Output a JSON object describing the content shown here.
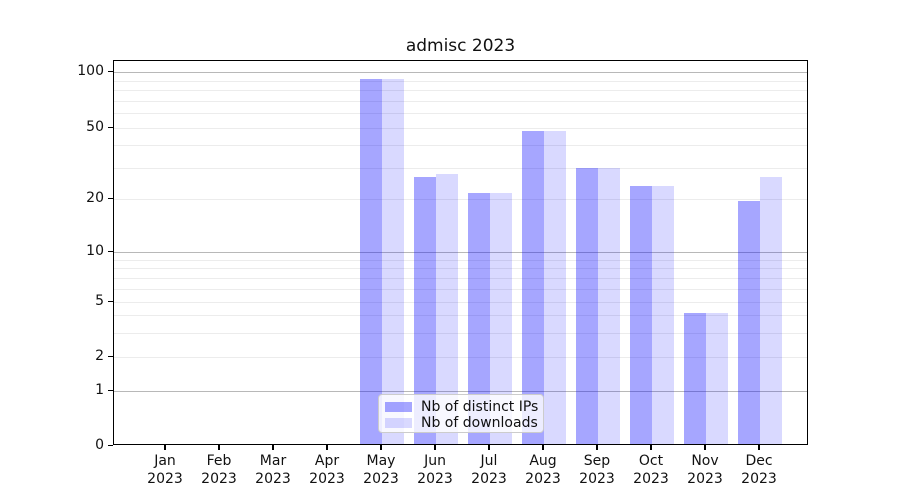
{
  "chart_data": {
    "type": "bar",
    "title": "admisc 2023",
    "categories": [
      "Jan 2023",
      "Feb 2023",
      "Mar 2023",
      "Apr 2023",
      "May 2023",
      "Jun 2023",
      "Jul 2023",
      "Aug 2023",
      "Sep 2023",
      "Oct 2023",
      "Nov 2023",
      "Dec 2023"
    ],
    "series": [
      {
        "name": "Nb of distinct IPs",
        "color": "rgba(0,0,255,0.35)",
        "color_hex": "#a6a6ff",
        "values": [
          0,
          0,
          0,
          0,
          90,
          26,
          21,
          47,
          29,
          23,
          4,
          19
        ]
      },
      {
        "name": "Nb of downloads",
        "color": "rgba(0,0,255,0.15)",
        "color_hex": "#d9d9ff",
        "values": [
          0,
          0,
          0,
          0,
          90,
          27,
          21,
          47,
          29,
          23,
          4,
          26
        ]
      }
    ],
    "xlabel": "",
    "ylabel": "",
    "scale": "symlog-like",
    "ylim": [
      0,
      110
    ],
    "yticks": [
      0,
      1,
      2,
      5,
      10,
      20,
      50,
      100
    ],
    "minor_gridlines": [
      2,
      3,
      4,
      5,
      6,
      7,
      8,
      9,
      20,
      30,
      40,
      50,
      60,
      70,
      80,
      90
    ],
    "major_gridlines": [
      1,
      10,
      100
    ],
    "grid": true,
    "legend_position": "lower center"
  }
}
